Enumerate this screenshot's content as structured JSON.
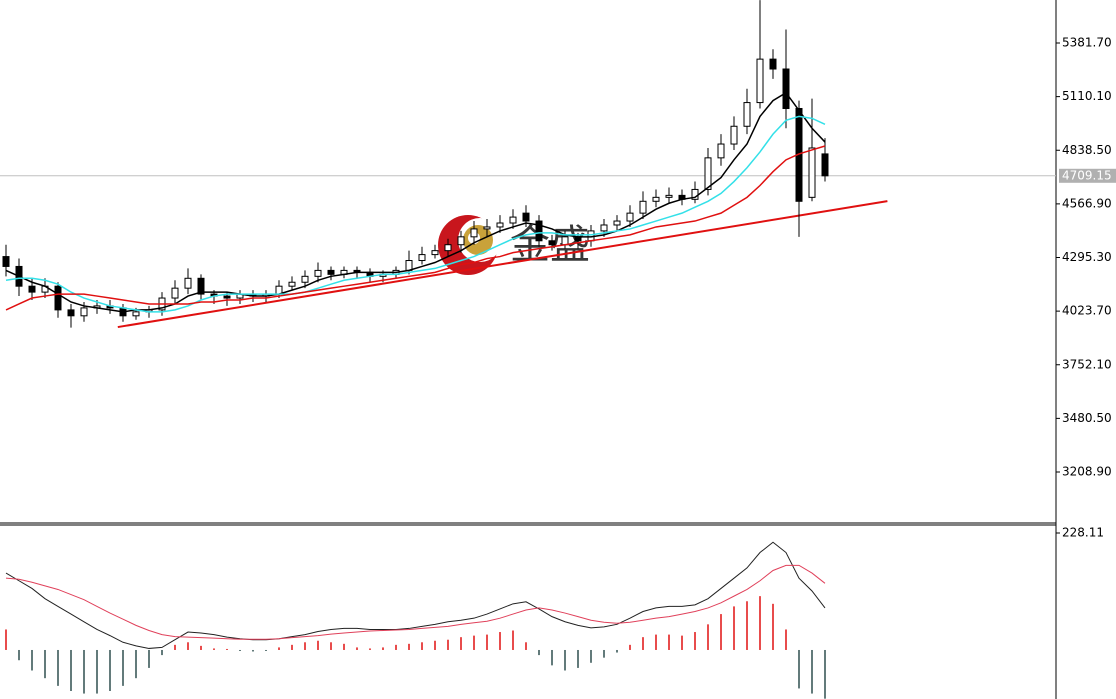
{
  "chart_data": [
    {
      "type": "candlestick",
      "open": [
        4300,
        4250,
        4150,
        4120,
        4150,
        4030,
        4000,
        4040,
        4050,
        4040,
        4000,
        4020,
        4030,
        4090,
        4140,
        4190,
        4110,
        4100,
        4090,
        4110,
        4100,
        4110,
        4150,
        4170,
        4200,
        4230,
        4210,
        4230,
        4220,
        4200,
        4210,
        4230,
        4280,
        4310,
        4330,
        4360,
        4400,
        4440,
        4450,
        4470,
        4520,
        4480,
        4380,
        4360,
        4400,
        4380,
        4430,
        4460,
        4480,
        4520,
        4580,
        4600,
        4610,
        4590,
        4640,
        4800,
        4870,
        4960,
        5080,
        5300,
        5250,
        5050,
        4600,
        4820
      ],
      "high": [
        4360,
        4290,
        4190,
        4190,
        4170,
        4060,
        4070,
        4080,
        4080,
        4060,
        4040,
        4050,
        4120,
        4180,
        4240,
        4210,
        4130,
        4120,
        4130,
        4130,
        4130,
        4180,
        4200,
        4230,
        4270,
        4250,
        4250,
        4250,
        4240,
        4230,
        4250,
        4330,
        4350,
        4360,
        4390,
        4430,
        4480,
        4490,
        4510,
        4540,
        4560,
        4510,
        4410,
        4430,
        4420,
        4460,
        4490,
        4510,
        4560,
        4630,
        4640,
        4650,
        4640,
        4680,
        4850,
        4920,
        5010,
        5150,
        5599,
        5350,
        5450,
        5090,
        5100,
        4900
      ],
      "low": [
        4200,
        4100,
        4080,
        4090,
        3990,
        3940,
        3970,
        4010,
        4010,
        3970,
        3980,
        3990,
        4000,
        4060,
        4110,
        4080,
        4060,
        4050,
        4060,
        4070,
        4070,
        4090,
        4130,
        4140,
        4170,
        4180,
        4190,
        4190,
        4170,
        4170,
        4190,
        4210,
        4260,
        4290,
        4300,
        4320,
        4360,
        4400,
        4420,
        4440,
        4450,
        4350,
        4330,
        4340,
        4340,
        4350,
        4400,
        4430,
        4450,
        4490,
        4550,
        4570,
        4560,
        4570,
        4610,
        4760,
        4840,
        4920,
        5050,
        5200,
        4950,
        4400,
        4580,
        4680
      ],
      "close": [
        4250,
        4150,
        4120,
        4150,
        4030,
        4000,
        4040,
        4050,
        4040,
        4000,
        4020,
        4030,
        4090,
        4140,
        4190,
        4110,
        4100,
        4090,
        4110,
        4100,
        4110,
        4150,
        4170,
        4200,
        4230,
        4210,
        4230,
        4220,
        4200,
        4210,
        4230,
        4280,
        4310,
        4330,
        4360,
        4400,
        4440,
        4450,
        4470,
        4500,
        4480,
        4380,
        4360,
        4400,
        4380,
        4430,
        4460,
        4480,
        4520,
        4580,
        4600,
        4610,
        4590,
        4640,
        4800,
        4870,
        4960,
        5080,
        5300,
        5250,
        5050,
        4580,
        4850,
        4709
      ],
      "series": [
        {
          "color": "#000000",
          "values": [
            4230,
            4200,
            4170,
            4150,
            4110,
            4070,
            4050,
            4040,
            4030,
            4020,
            4030,
            4030,
            4040,
            4060,
            4100,
            4120,
            4120,
            4120,
            4110,
            4100,
            4100,
            4110,
            4130,
            4150,
            4180,
            4200,
            4210,
            4220,
            4220,
            4220,
            4220,
            4230,
            4250,
            4270,
            4300,
            4330,
            4370,
            4400,
            4430,
            4450,
            4470,
            4460,
            4440,
            4410,
            4400,
            4400,
            4410,
            4430,
            4460,
            4500,
            4540,
            4570,
            4590,
            4600,
            4650,
            4700,
            4790,
            4870,
            5010,
            5090,
            5130,
            5040,
            4950,
            4880
          ]
        },
        {
          "color": "#33e0e8",
          "values": [
            4180,
            4190,
            4190,
            4180,
            4160,
            4120,
            4090,
            4070,
            4050,
            4040,
            4030,
            4020,
            4020,
            4030,
            4050,
            4080,
            4100,
            4110,
            4110,
            4110,
            4110,
            4110,
            4110,
            4120,
            4140,
            4160,
            4180,
            4190,
            4200,
            4210,
            4210,
            4220,
            4230,
            4240,
            4260,
            4280,
            4300,
            4330,
            4360,
            4390,
            4410,
            4420,
            4420,
            4410,
            4410,
            4410,
            4420,
            4430,
            4440,
            4460,
            4480,
            4500,
            4520,
            4550,
            4580,
            4620,
            4680,
            4750,
            4830,
            4920,
            4990,
            5010,
            5000,
            4970
          ]
        },
        {
          "color": "#e01010",
          "values": [
            4030,
            4060,
            4090,
            4100,
            4110,
            4110,
            4110,
            4100,
            4090,
            4080,
            4070,
            4060,
            4060,
            4060,
            4060,
            4070,
            4070,
            4080,
            4080,
            4090,
            4090,
            4100,
            4110,
            4120,
            4130,
            4140,
            4150,
            4160,
            4170,
            4180,
            4190,
            4200,
            4210,
            4220,
            4240,
            4260,
            4270,
            4290,
            4300,
            4320,
            4330,
            4340,
            4350,
            4360,
            4370,
            4380,
            4390,
            4400,
            4410,
            4430,
            4450,
            4460,
            4470,
            4480,
            4500,
            4520,
            4560,
            4600,
            4660,
            4730,
            4790,
            4820,
            4840,
            4860
          ]
        }
      ],
      "trendline": {
        "x": [
          8.6,
          67.8
        ],
        "y": [
          3943,
          4581
        ],
        "color": "#e01010"
      },
      "last_price": 4709.15,
      "watermark": "金盛",
      "ylim": [
        2950.6,
        5599.5
      ],
      "yticks": [
        {
          "value": 5381.7,
          "label": "5381.70"
        },
        {
          "value": 5110.1,
          "label": "5110.10"
        },
        {
          "value": 4838.5,
          "label": "4838.50"
        },
        {
          "value": 4566.9,
          "label": "4566.90"
        },
        {
          "value": 4295.3,
          "label": "4295.30"
        },
        {
          "value": 4023.7,
          "label": "4023.70"
        },
        {
          "value": 3752.1,
          "label": "3752.10"
        },
        {
          "value": 3480.5,
          "label": "3480.50"
        },
        {
          "value": 3208.9,
          "label": "3208.90"
        }
      ]
    },
    {
      "type": "macd",
      "histogram": {
        "up_color": "#e01010",
        "down_color": "#2f4f4f",
        "values": [
          40,
          -20,
          -40,
          -55,
          -70,
          -80,
          -85,
          -85,
          -80,
          -70,
          -55,
          -35,
          -10,
          10,
          15,
          8,
          3,
          2,
          -2,
          -3,
          -2,
          5,
          10,
          15,
          18,
          15,
          12,
          5,
          3,
          5,
          10,
          12,
          15,
          18,
          20,
          25,
          28,
          30,
          35,
          38,
          15,
          -10,
          -30,
          -40,
          -35,
          -25,
          -15,
          -5,
          10,
          25,
          30,
          30,
          28,
          35,
          50,
          70,
          85,
          95,
          105,
          90,
          40,
          -75,
          -85,
          -95
        ]
      },
      "series": [
        {
          "color": "#222222",
          "values": [
            150,
            135,
            120,
            100,
            85,
            70,
            55,
            40,
            28,
            15,
            8,
            3,
            5,
            20,
            35,
            33,
            30,
            25,
            22,
            20,
            20,
            22,
            26,
            30,
            36,
            40,
            42,
            42,
            40,
            40,
            40,
            42,
            46,
            50,
            55,
            58,
            62,
            70,
            80,
            90,
            94,
            80,
            65,
            55,
            48,
            43,
            45,
            50,
            62,
            75,
            82,
            85,
            85,
            88,
            100,
            120,
            140,
            160,
            190,
            210,
            190,
            140,
            115,
            82
          ]
        },
        {
          "color": "#e0405a",
          "values": [
            140,
            138,
            132,
            125,
            118,
            108,
            98,
            85,
            72,
            60,
            48,
            38,
            30,
            26,
            25,
            24,
            23,
            22,
            21,
            21,
            21,
            22,
            24,
            26,
            28,
            31,
            33,
            35,
            37,
            38,
            39,
            40,
            42,
            44,
            46,
            50,
            53,
            56,
            62,
            70,
            78,
            82,
            78,
            72,
            65,
            58,
            54,
            52,
            54,
            58,
            62,
            65,
            70,
            75,
            82,
            92,
            105,
            118,
            135,
            155,
            165,
            165,
            150,
            130
          ]
        }
      ],
      "ylim": [
        -95.6,
        243.7
      ],
      "yticks": [
        228.11
      ]
    }
  ]
}
